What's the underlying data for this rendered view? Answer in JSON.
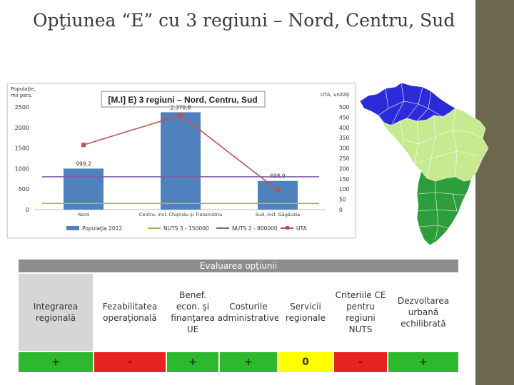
{
  "slide": {
    "title": "Opţiunea “E” cu 3 regiuni – Nord, Centru, Sud"
  },
  "chart_data": {
    "type": "bar",
    "title": "[M.I] E) 3 regiuni – Nord, Centru, Sud",
    "ylabel_left": "Populaţie, mii pers.",
    "ylabel_right": "UTA, unităţi",
    "categories": [
      "Nord",
      "Centru, incl. Chişinău şi Transnistria",
      "Sud, incl. Găgăuzia"
    ],
    "ylim_left": [
      0,
      2500
    ],
    "yticks_left": [
      "0",
      "500",
      "1000",
      "1500",
      "2000",
      "2500"
    ],
    "ylim_right": [
      0,
      500
    ],
    "yticks_right": [
      "0",
      "50",
      "100",
      "150",
      "200",
      "250",
      "300",
      "350",
      "400",
      "450",
      "500"
    ],
    "series": [
      {
        "name": "Populaţia 2012",
        "kind": "bar",
        "axis": "left",
        "values": [
          999.2,
          2370.8,
          698.9
        ],
        "labels": [
          "999,2",
          "2.370,8",
          "698,9"
        ],
        "color": "#4f81bd"
      },
      {
        "name": "NUTS 3 - 150000",
        "kind": "line",
        "axis": "left",
        "values": [
          150,
          150,
          150
        ],
        "color": "#9bbb59"
      },
      {
        "name": "NUTS 2 - 800000",
        "kind": "line",
        "axis": "left",
        "values": [
          800,
          800,
          800
        ],
        "color": "#7f5fa6"
      },
      {
        "name": "UTA",
        "kind": "line",
        "axis": "right",
        "values": [
          315,
          460,
          95
        ],
        "color": "#c0504d"
      }
    ],
    "legend_position": "bottom",
    "grid": false
  },
  "evaluation": {
    "header": "Evaluarea opţiunii",
    "columns": [
      {
        "label": "Integrarea regională",
        "value": "+",
        "status": "green"
      },
      {
        "label": "Fezabilitatea operaţională",
        "value": "-",
        "status": "red"
      },
      {
        "label": "Benef. econ. şi finanţarea UE",
        "value": "+",
        "status": "green"
      },
      {
        "label": "Costurile administrative",
        "value": "+",
        "status": "green"
      },
      {
        "label": "Servicii regionale",
        "value": "0",
        "status": "yellow"
      },
      {
        "label": "Criteriile CE pentru regiuni NUTS",
        "value": "-",
        "status": "red"
      },
      {
        "label": "Dezvoltarea urbană echilibrată",
        "value": "+",
        "status": "green"
      }
    ]
  },
  "map": {
    "regions": [
      {
        "name": "Nord",
        "color": "#2b2bd9"
      },
      {
        "name": "Centru",
        "color": "#c6ea90"
      },
      {
        "name": "Sud",
        "color": "#2e9e3c"
      }
    ]
  }
}
